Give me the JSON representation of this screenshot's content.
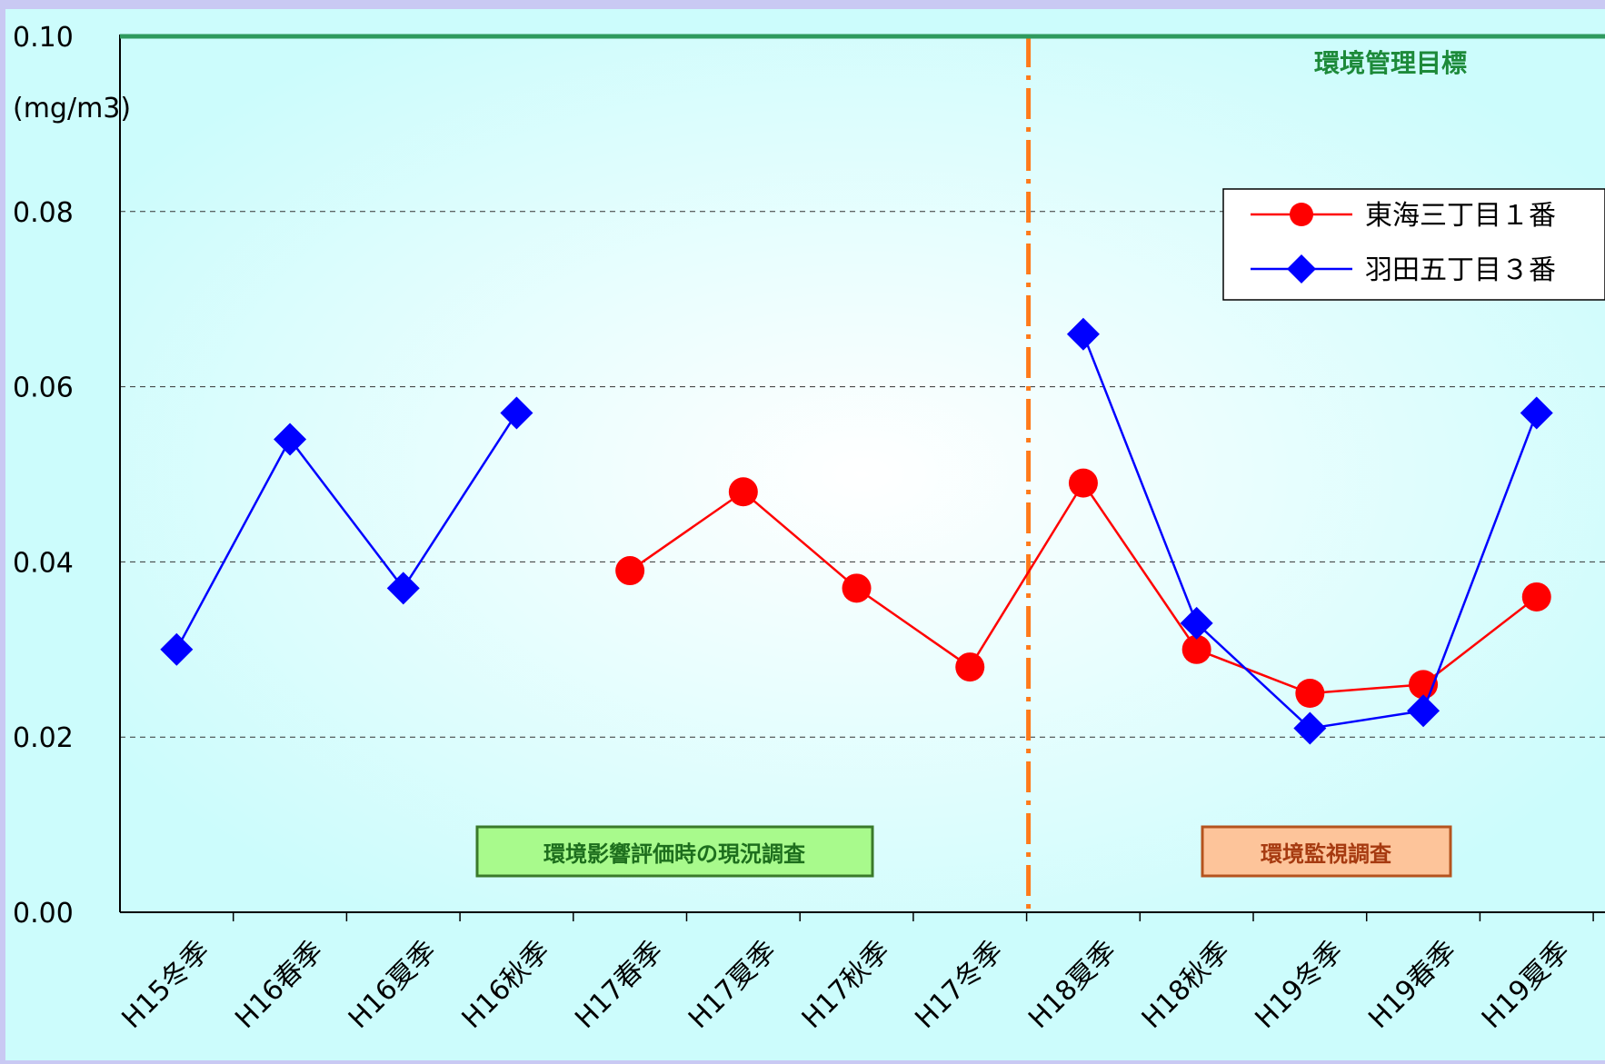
{
  "chart_data": {
    "type": "line",
    "unit_label": "(mg/m3)",
    "y_ticks": [
      "0.00",
      "0.02",
      "0.04",
      "0.06",
      "0.08",
      "0.10"
    ],
    "ylim": [
      0,
      0.1
    ],
    "grid": true,
    "categories": [
      "H15冬季",
      "H16春季",
      "H16夏季",
      "H16秋季",
      "H17春季",
      "H17夏季",
      "H17秋季",
      "H17冬季",
      "H18夏季",
      "H18秋季",
      "H19冬季",
      "H19春季",
      "H19夏季"
    ],
    "series": [
      {
        "name": "東海三丁目１番",
        "color": "#ff0000",
        "marker": "circle",
        "values": [
          null,
          null,
          null,
          null,
          0.039,
          0.048,
          0.037,
          0.028,
          0.049,
          0.03,
          0.025,
          0.026,
          0.036
        ]
      },
      {
        "name": "羽田五丁目３番",
        "color": "#0000ff",
        "marker": "diamond",
        "values": [
          0.03,
          0.054,
          0.037,
          0.057,
          null,
          null,
          null,
          null,
          0.066,
          0.033,
          0.021,
          0.023,
          0.057
        ]
      }
    ],
    "target_line": {
      "value": 0.1,
      "label": "環境管理目標",
      "color": "#2e9a5e"
    },
    "period_divider_between": [
      "H17冬季",
      "H18夏季"
    ],
    "period_labels": {
      "left": "環境影響評価時の現況調査",
      "right": "環境監視調査"
    },
    "legend_position": "top-right"
  }
}
